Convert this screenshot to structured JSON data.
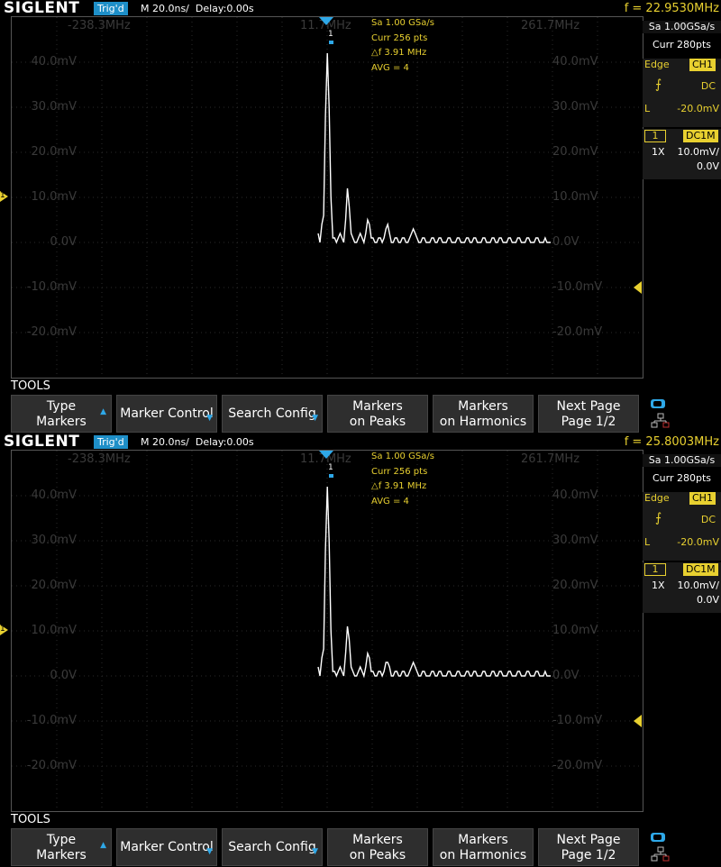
{
  "panels": [
    {
      "brand": "SIGLENT",
      "trigger_status": "Trig'd",
      "timebase": "M 20.0ns/  Delay:0.00s",
      "frequency_readout": "f = 22.9530MHz",
      "freq_left": "-238.3MHz",
      "freq_center": "11.7MHz",
      "freq_right": "261.7MHz",
      "y_labels": [
        "40.0mV",
        "30.0mV",
        "20.0mV",
        "10.0mV",
        "0.0V",
        "-10.0mV",
        "-20.0mV"
      ],
      "info": {
        "sa": "Sa 1.00 GSa/s",
        "curr": "Curr 256 pts",
        "df": "△f 3.91 MHz",
        "avg": "AVG = 4"
      },
      "marker_label": "1",
      "channel_marker": "1",
      "right_panel": {
        "sa": "Sa 1.00GSa/s",
        "curr": "Curr 280pts",
        "edge": "Edge",
        "trig_ch": "CH1",
        "slope": "⨍",
        "coupling": "DC",
        "level_label": "L",
        "level": "-20.0mV",
        "ch_num": "1",
        "ch_coupling": "DC1M",
        "probe": "1X",
        "scale": "10.0mV/",
        "offset": "0.0V"
      },
      "tools_label": "TOOLS",
      "softkeys": [
        {
          "line1": "Type",
          "line2": "Markers"
        },
        {
          "line1": "Marker Control",
          "line2": ""
        },
        {
          "line1": "Search Config",
          "line2": ""
        },
        {
          "line1": "Markers",
          "line2": "on Peaks"
        },
        {
          "line1": "Markers",
          "line2": "on Harmonics"
        },
        {
          "line1": "Next Page",
          "line2": "Page 1/2"
        }
      ],
      "trace_mv": [
        2,
        0,
        4,
        6,
        28,
        42,
        30,
        10,
        1,
        1,
        0,
        1,
        2,
        1,
        0,
        5,
        12,
        8,
        2,
        1,
        0,
        0,
        1,
        2,
        1,
        0,
        2,
        5,
        4,
        1,
        1,
        0,
        0,
        1,
        1,
        0,
        1,
        3,
        4,
        2,
        0,
        0,
        1,
        1,
        0,
        0,
        1,
        1,
        0,
        0,
        1,
        2,
        3,
        2,
        1,
        0,
        0,
        1,
        1,
        0,
        0,
        0,
        1,
        1,
        0,
        0,
        1,
        1,
        0,
        0,
        0,
        1,
        1,
        0,
        0,
        0,
        1,
        1,
        0,
        0,
        0,
        1,
        1,
        0,
        0,
        1,
        1,
        0,
        0,
        0,
        1,
        1,
        0,
        0,
        0,
        1,
        1,
        0,
        0,
        1,
        1,
        0,
        0,
        0,
        1,
        1,
        0,
        0,
        0,
        1,
        1,
        0,
        0,
        0,
        1,
        1,
        0,
        0,
        0,
        1,
        1,
        0,
        0,
        0,
        1,
        0,
        0,
        0
      ]
    },
    {
      "brand": "SIGLENT",
      "trigger_status": "Trig'd",
      "timebase": "M 20.0ns/  Delay:0.00s",
      "frequency_readout": "f = 25.8003MHz",
      "freq_left": "-238.3MHz",
      "freq_center": "11.7MHz",
      "freq_right": "261.7MHz",
      "y_labels": [
        "40.0mV",
        "30.0mV",
        "20.0mV",
        "10.0mV",
        "0.0V",
        "-10.0mV",
        "-20.0mV"
      ],
      "info": {
        "sa": "Sa 1.00 GSa/s",
        "curr": "Curr 256 pts",
        "df": "△f 3.91 MHz",
        "avg": "AVG = 4"
      },
      "marker_label": "1",
      "channel_marker": "1",
      "right_panel": {
        "sa": "Sa 1.00GSa/s",
        "curr": "Curr 280pts",
        "edge": "Edge",
        "trig_ch": "CH1",
        "slope": "⨍",
        "coupling": "DC",
        "level_label": "L",
        "level": "-20.0mV",
        "ch_num": "1",
        "ch_coupling": "DC1M",
        "probe": "1X",
        "scale": "10.0mV/",
        "offset": "0.0V"
      },
      "tools_label": "TOOLS",
      "softkeys": [
        {
          "line1": "Type",
          "line2": "Markers"
        },
        {
          "line1": "Marker Control",
          "line2": ""
        },
        {
          "line1": "Search Config",
          "line2": ""
        },
        {
          "line1": "Markers",
          "line2": "on Peaks"
        },
        {
          "line1": "Markers",
          "line2": "on Harmonics"
        },
        {
          "line1": "Next Page",
          "line2": "Page 1/2"
        }
      ],
      "trace_mv": [
        2,
        0,
        4,
        6,
        28,
        42,
        30,
        10,
        1,
        1,
        0,
        1,
        2,
        1,
        0,
        5,
        11,
        8,
        2,
        1,
        0,
        0,
        1,
        2,
        1,
        0,
        2,
        5,
        4,
        1,
        1,
        0,
        0,
        1,
        1,
        0,
        1,
        3,
        3,
        2,
        0,
        0,
        1,
        1,
        0,
        0,
        1,
        1,
        0,
        0,
        1,
        2,
        3,
        2,
        1,
        0,
        0,
        1,
        1,
        0,
        0,
        0,
        1,
        1,
        0,
        0,
        1,
        1,
        0,
        0,
        0,
        1,
        1,
        0,
        0,
        0,
        1,
        1,
        0,
        0,
        0,
        1,
        1,
        0,
        0,
        1,
        1,
        0,
        0,
        0,
        1,
        1,
        0,
        0,
        0,
        1,
        1,
        0,
        0,
        1,
        1,
        0,
        0,
        0,
        1,
        1,
        0,
        0,
        0,
        1,
        1,
        0,
        0,
        0,
        1,
        1,
        0,
        0,
        0,
        1,
        1,
        0,
        0,
        0,
        1,
        0,
        0,
        0
      ]
    }
  ]
}
